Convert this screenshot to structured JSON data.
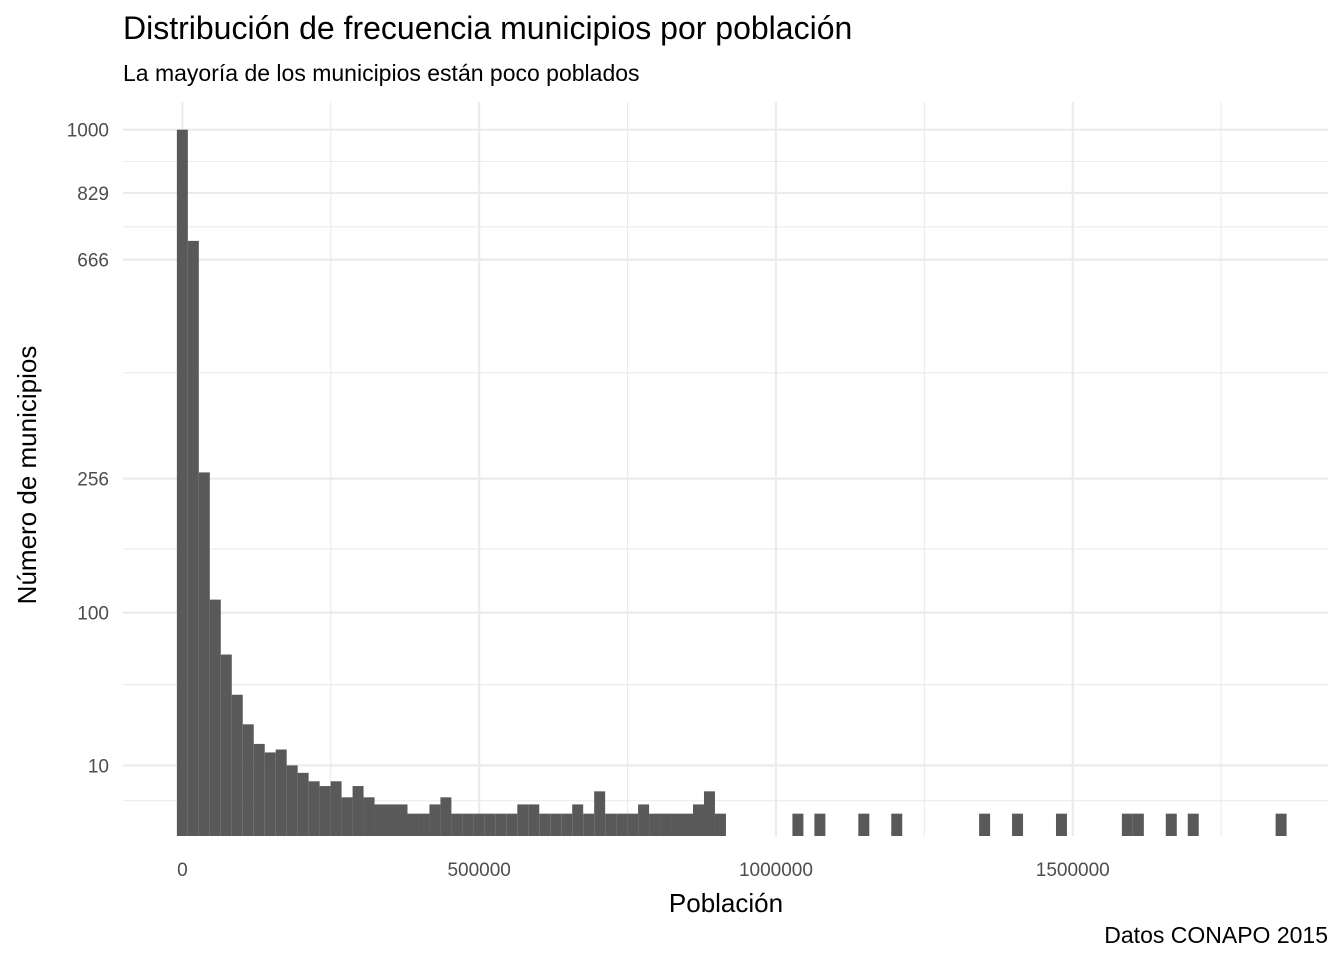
{
  "chart_data": {
    "type": "bar",
    "title": "Distribución de frecuencia municipios por población",
    "subtitle": "La mayoría de los municipios están poco poblados",
    "xlabel": "Población",
    "ylabel": "Número de municipios",
    "caption": "Datos CONAPO 2015",
    "xlim": [
      -100000,
      1930000
    ],
    "x_ticks": [
      0,
      500000,
      1000000,
      1500000
    ],
    "x_tick_labels": [
      "0",
      "500000",
      "1000000",
      "1500000"
    ],
    "x_minor_ticks": [
      250000,
      750000,
      1250000,
      1750000
    ],
    "y_scale": "sqrt",
    "ylim": [
      0,
      1080
    ],
    "y_ticks": [
      10,
      100,
      256,
      666,
      829,
      1000
    ],
    "y_tick_labels": [
      "10",
      "100",
      "256",
      "666",
      "829",
      "1000"
    ],
    "y_minor_ticks": [
      2.5,
      46,
      165,
      430,
      744,
      912
    ],
    "grid": true,
    "bin_width": 18500,
    "bins_start": [
      -9250,
      9250,
      27750,
      46250,
      64750,
      83250,
      101750,
      120250,
      138750,
      157250,
      175750,
      194250,
      212750,
      231250,
      249750,
      268250,
      286750,
      305250,
      323750,
      342250,
      360750,
      379250,
      397750,
      416250,
      434750,
      453250,
      471750,
      490250,
      508750,
      527250,
      545750,
      564250,
      582750,
      601250,
      619750,
      638250,
      656750,
      675250,
      693750,
      712250,
      730750,
      749250,
      767750,
      786250,
      804750,
      823250,
      841750,
      860250,
      878750,
      897250,
      1027750,
      1064750,
      1138750,
      1194250,
      1342250,
      1397750,
      1471750,
      1582750,
      1601250,
      1656750,
      1693750,
      1841750
    ],
    "counts": [
      1000,
      710,
      265,
      112,
      66,
      40,
      25,
      17,
      14,
      15,
      10,
      8,
      6,
      5,
      6,
      3,
      5,
      3,
      2,
      2,
      2,
      1,
      1,
      2,
      3,
      1,
      1,
      1,
      1,
      1,
      1,
      2,
      2,
      1,
      1,
      1,
      2,
      1,
      4,
      1,
      1,
      1,
      2,
      1,
      1,
      1,
      1,
      2,
      4,
      1,
      1,
      1,
      1,
      1,
      1,
      1,
      1,
      1,
      1,
      1,
      1,
      1
    ]
  }
}
